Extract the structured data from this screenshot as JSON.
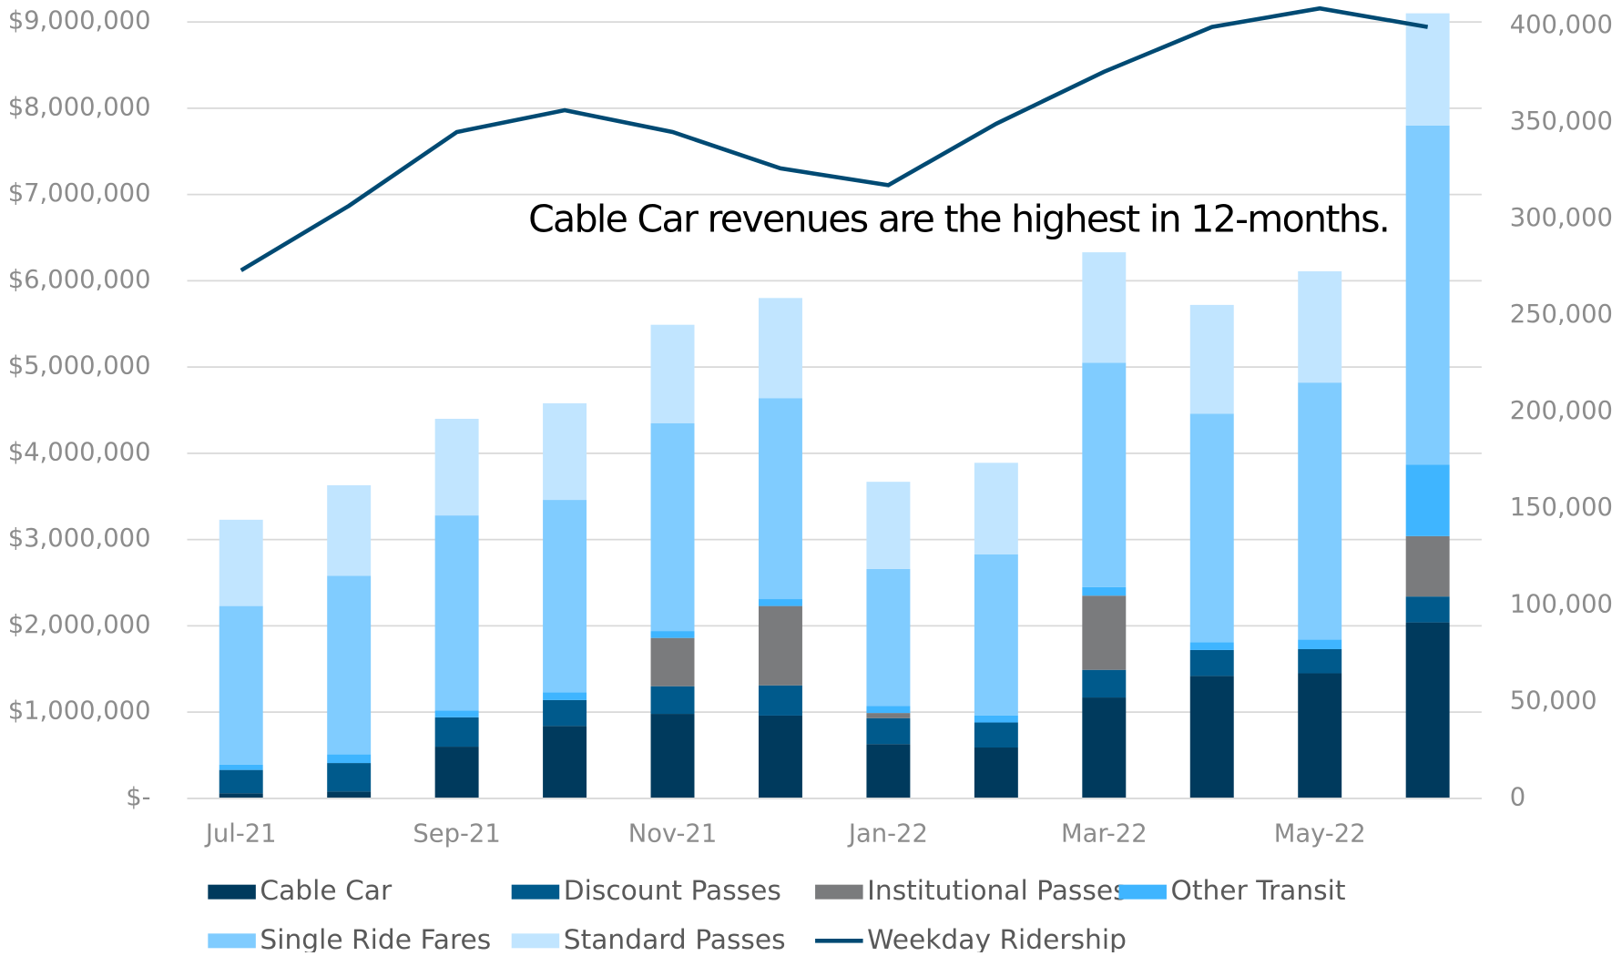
{
  "chart_data": {
    "type": "bar",
    "annotation": "Cable Car revenues are the highest in 12-months.",
    "categories": [
      "Jul-21",
      null,
      "Sep-21",
      null,
      "Nov-21",
      null,
      "Jan-22",
      null,
      "Mar-22",
      null,
      "May-22",
      null
    ],
    "series": [
      {
        "name": "Cable Car",
        "color": "#003a5d",
        "values": [
          60000,
          80000,
          600000,
          840000,
          980000,
          960000,
          630000,
          590000,
          1170000,
          1420000,
          1450000,
          2040000
        ]
      },
      {
        "name": "Discount Passes",
        "color": "#005a8c",
        "values": [
          270000,
          330000,
          340000,
          300000,
          320000,
          350000,
          300000,
          290000,
          320000,
          300000,
          280000,
          300000
        ]
      },
      {
        "name": "Institutional Passes",
        "color": "#7a7b7d",
        "values": [
          0,
          0,
          0,
          0,
          560000,
          920000,
          60000,
          0,
          860000,
          0,
          0,
          700000
        ]
      },
      {
        "name": "Other Transit",
        "color": "#3fb5ff",
        "values": [
          60000,
          100000,
          80000,
          90000,
          80000,
          80000,
          80000,
          80000,
          100000,
          90000,
          110000,
          830000
        ]
      },
      {
        "name": "Single Ride Fares",
        "color": "#80ccff",
        "values": [
          1840000,
          2070000,
          2260000,
          2230000,
          2410000,
          2330000,
          1590000,
          1870000,
          2600000,
          2650000,
          2980000,
          3930000
        ]
      },
      {
        "name": "Standard Passes",
        "color": "#c1e5ff",
        "values": [
          1000000,
          1050000,
          1120000,
          1120000,
          1140000,
          1160000,
          1010000,
          1060000,
          1280000,
          1260000,
          1290000,
          1300000
        ]
      },
      {
        "name": "Weekday Ridership",
        "color": "#004a73",
        "type": "line",
        "axis": "y2",
        "values": [
          273400,
          306800,
          345000,
          356300,
          345000,
          326200,
          317500,
          349300,
          376200,
          399400,
          409000,
          399400
        ]
      }
    ],
    "ylim": [
      0,
      9000000
    ],
    "yticks": [
      {
        "value": 0,
        "label": "$-"
      },
      {
        "value": 1000000,
        "label": "$1,000,000"
      },
      {
        "value": 2000000,
        "label": "$2,000,000"
      },
      {
        "value": 3000000,
        "label": "$3,000,000"
      },
      {
        "value": 4000000,
        "label": "$4,000,000"
      },
      {
        "value": 5000000,
        "label": "$5,000,000"
      },
      {
        "value": 6000000,
        "label": "$6,000,000"
      },
      {
        "value": 7000000,
        "label": "$7,000,000"
      },
      {
        "value": 8000000,
        "label": "$8,000,000"
      },
      {
        "value": 9000000,
        "label": "$9,000,000"
      }
    ],
    "y2lim": [
      0,
      402000
    ],
    "y2ticks": [
      0,
      {
        "value": 50000,
        "label": "50,000"
      },
      {
        "value": 100000,
        "label": "100,000"
      },
      {
        "value": 150000,
        "label": "150,000"
      },
      {
        "value": 200000,
        "label": "200,000"
      },
      {
        "value": 250000,
        "label": "250,000"
      },
      {
        "value": 300000,
        "label": "300,000"
      },
      {
        "value": 350000,
        "label": "350,000"
      },
      {
        "value": 400000,
        "label": "400,000"
      }
    ],
    "grid": true,
    "stacked": true,
    "legend": "bottom"
  }
}
